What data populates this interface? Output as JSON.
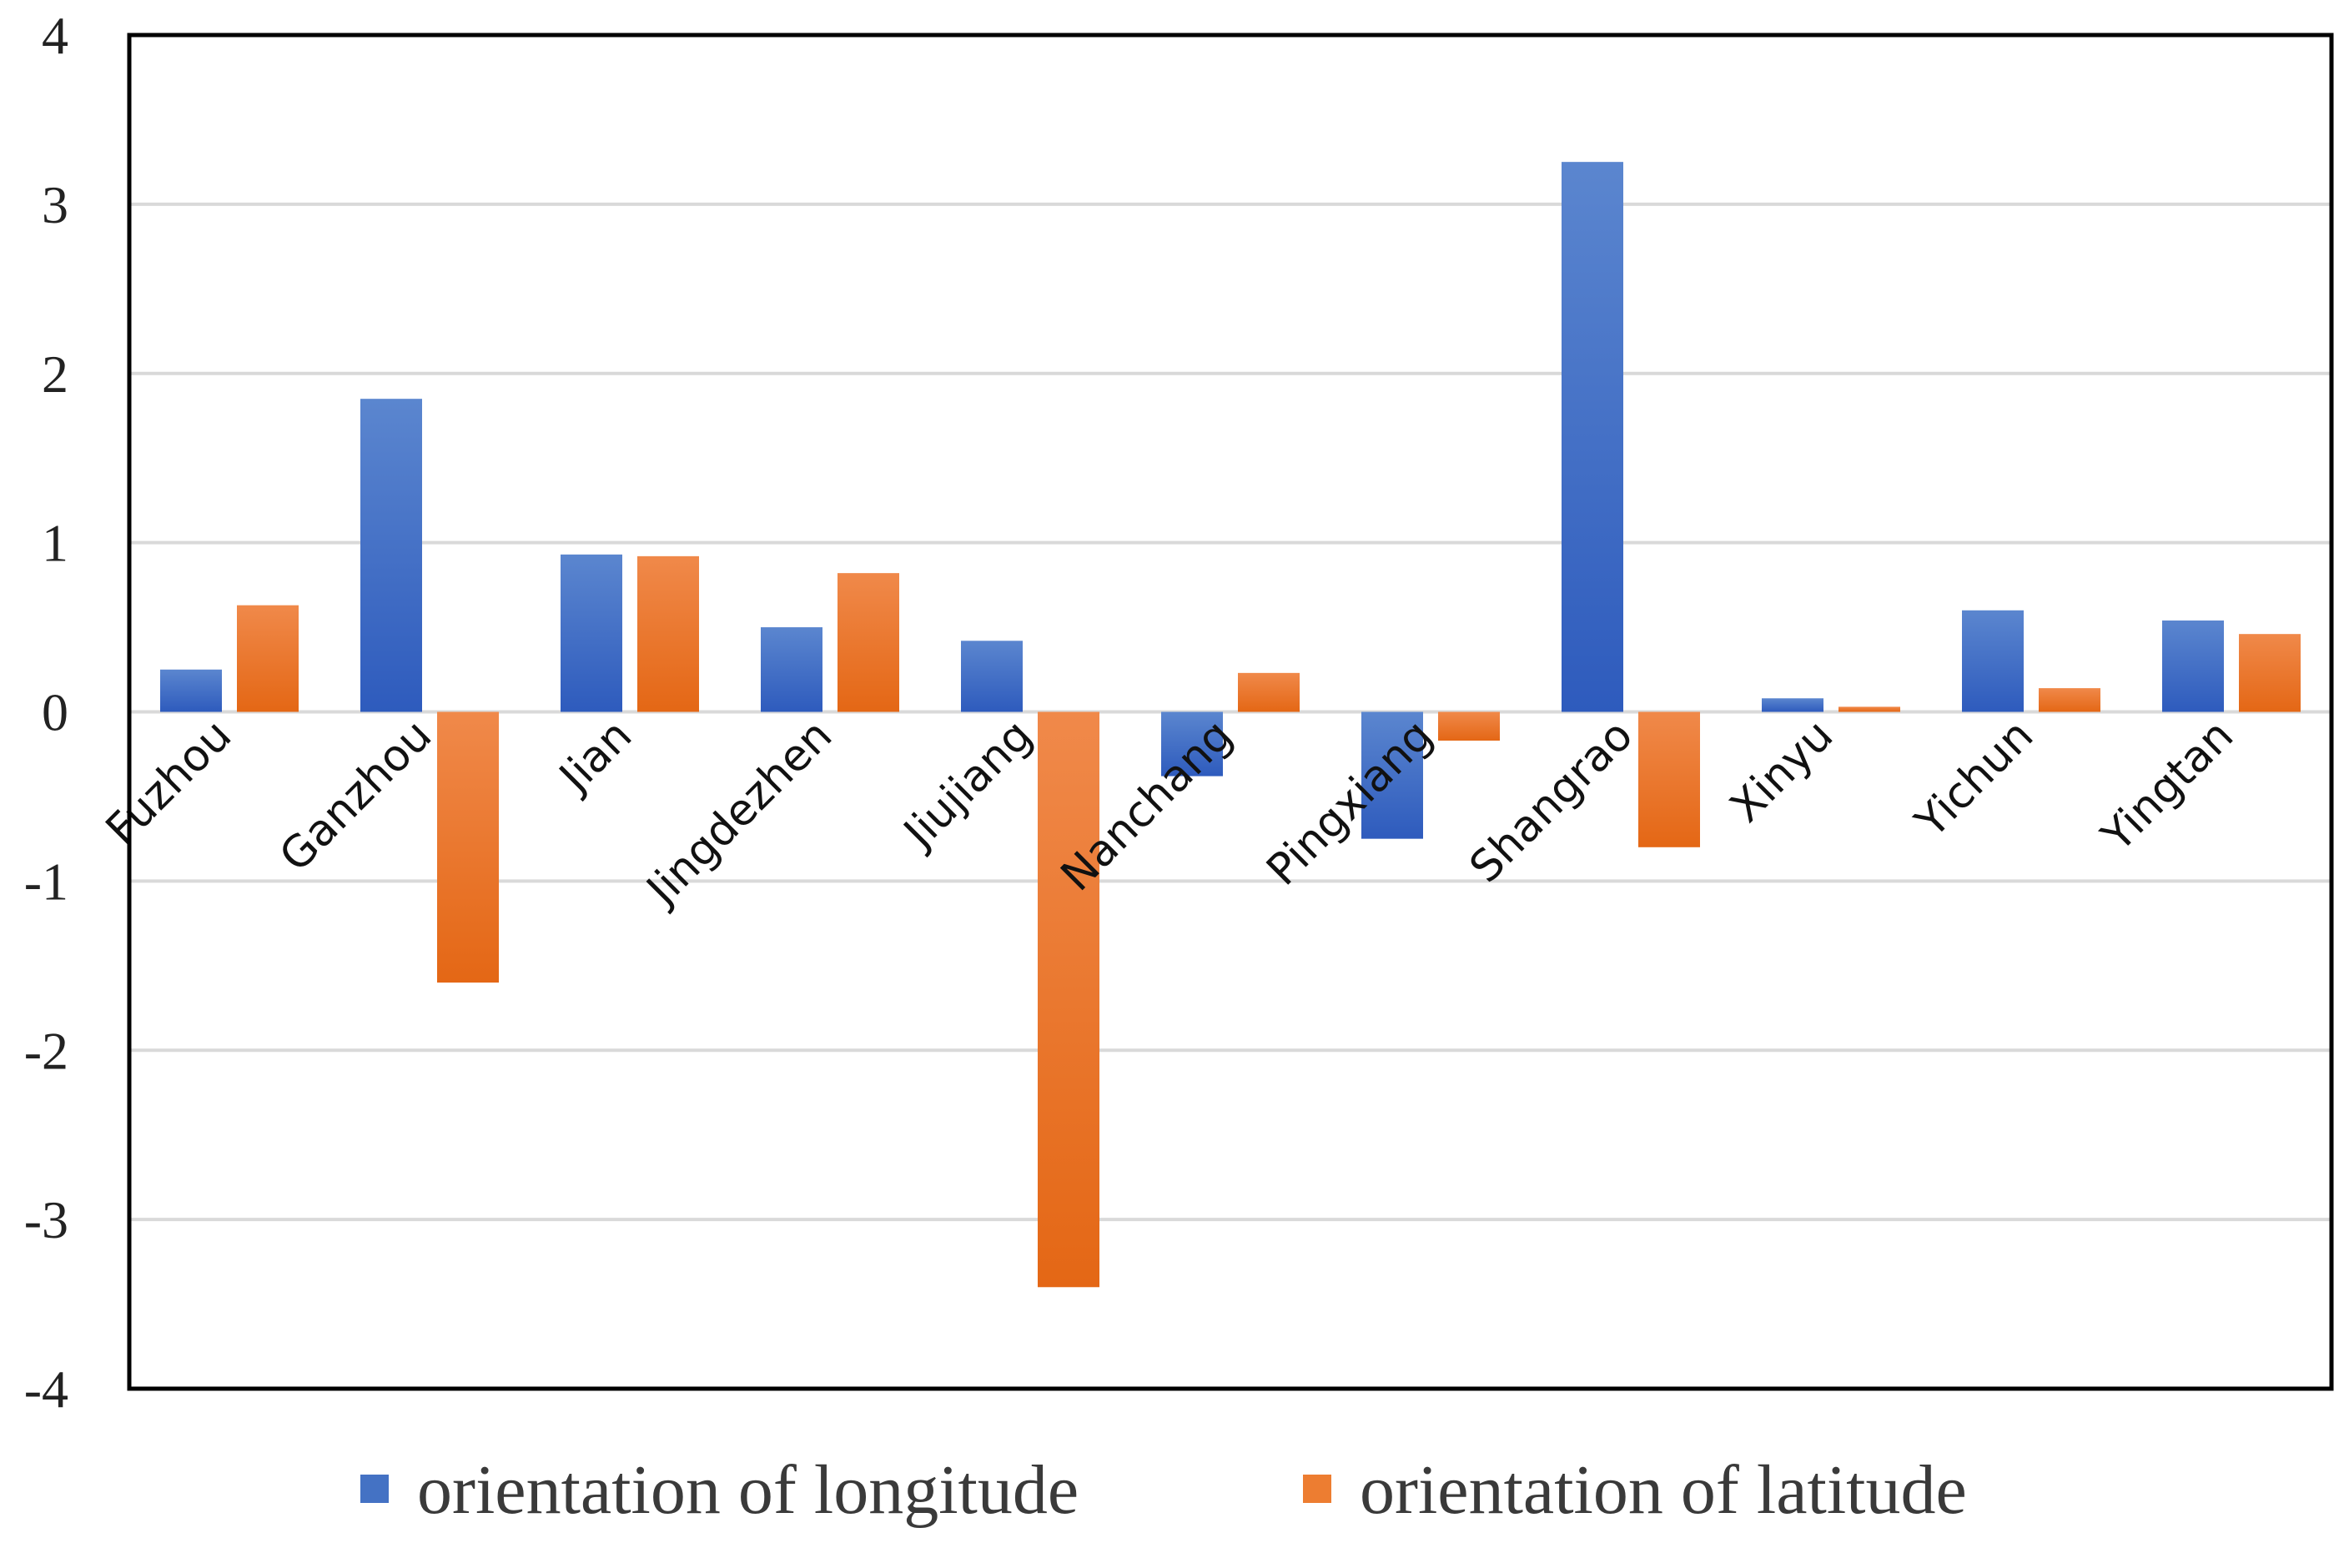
{
  "chart_data": {
    "type": "bar",
    "title": "",
    "xlabel": "",
    "ylabel": "",
    "ylim": [
      -4,
      4
    ],
    "yticks": [
      -4,
      -3,
      -2,
      -1,
      0,
      1,
      2,
      3,
      4
    ],
    "grid": true,
    "legend_position": "bottom",
    "categories": [
      "Fuzhou",
      "Ganzhou",
      "Jian",
      "Jingdezhen",
      "Jiujiang",
      "Nanchang",
      "Pingxiang",
      "Shangrao",
      "Xinyu",
      "Yichun",
      "Yingtan"
    ],
    "series": [
      {
        "name": "orientation of longitude",
        "color": "#4472C4",
        "values": [
          0.25,
          1.85,
          0.93,
          0.5,
          0.42,
          -0.38,
          -0.75,
          3.25,
          0.08,
          0.6,
          0.54
        ]
      },
      {
        "name": "orientation of latitude",
        "color": "#ED7D31",
        "values": [
          0.63,
          -1.6,
          0.92,
          0.82,
          -3.4,
          0.23,
          -0.17,
          -0.8,
          0.03,
          0.14,
          0.46
        ]
      }
    ]
  }
}
